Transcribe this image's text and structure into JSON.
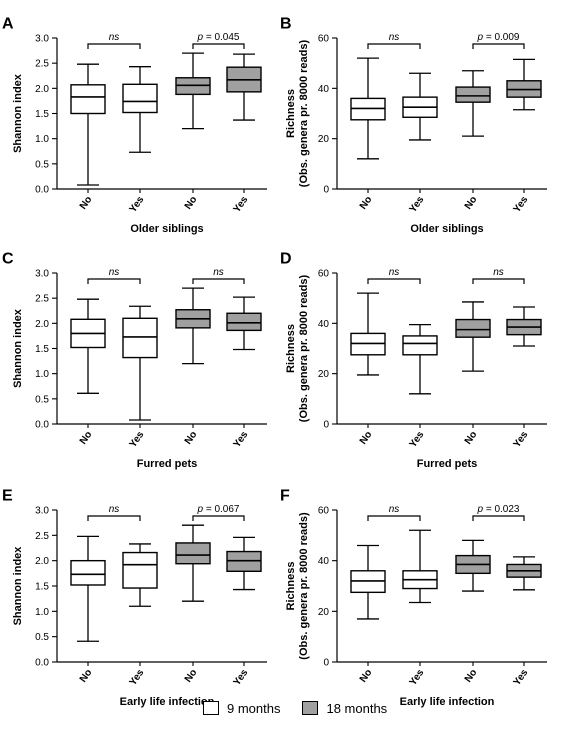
{
  "legend": {
    "items": [
      {
        "label": "9 months",
        "color": "#ffffff"
      },
      {
        "label": "18 months",
        "color": "#a0a0a0"
      }
    ]
  },
  "chart_data": [
    {
      "type": "box",
      "panel": "A",
      "xlabel": "Older siblings",
      "ylabel": "Shannon index",
      "ylim": [
        0,
        3.0
      ],
      "yticks": [
        "0.0",
        "0.5",
        "1.0",
        "1.5",
        "2.0",
        "2.5",
        "3.0"
      ],
      "categories": [
        "No",
        "Yes",
        "No",
        "Yes"
      ],
      "groups": [
        "9 months",
        "9 months",
        "18 months",
        "18 months"
      ],
      "boxes": [
        {
          "min": 0.08,
          "q1": 1.5,
          "median": 1.83,
          "q3": 2.07,
          "max": 2.48
        },
        {
          "min": 0.73,
          "q1": 1.52,
          "median": 1.74,
          "q3": 2.08,
          "max": 2.43
        },
        {
          "min": 1.2,
          "q1": 1.88,
          "median": 2.06,
          "q3": 2.21,
          "max": 2.7
        },
        {
          "min": 1.37,
          "q1": 1.93,
          "median": 2.17,
          "q3": 2.42,
          "max": 2.68
        }
      ],
      "annotations": [
        {
          "text": "ns",
          "between": [
            0,
            1
          ]
        },
        {
          "text": "p = 0.045",
          "between": [
            2,
            3
          ]
        }
      ]
    },
    {
      "type": "box",
      "panel": "B",
      "xlabel": "Older siblings",
      "ylabel": "Richness",
      "ylabel2": "(Obs. genera pr. 8000 reads)",
      "ylim": [
        0,
        60
      ],
      "yticks": [
        "0",
        "20",
        "40",
        "60"
      ],
      "categories": [
        "No",
        "Yes",
        "No",
        "Yes"
      ],
      "groups": [
        "9 months",
        "9 months",
        "18 months",
        "18 months"
      ],
      "boxes": [
        {
          "min": 12,
          "q1": 27.5,
          "median": 32,
          "q3": 36,
          "max": 52
        },
        {
          "min": 19.5,
          "q1": 28.5,
          "median": 32.5,
          "q3": 36.5,
          "max": 46
        },
        {
          "min": 21,
          "q1": 34.5,
          "median": 37,
          "q3": 40.5,
          "max": 47
        },
        {
          "min": 31.5,
          "q1": 36.5,
          "median": 39.5,
          "q3": 43,
          "max": 51.5
        }
      ],
      "annotations": [
        {
          "text": "ns",
          "between": [
            0,
            1
          ]
        },
        {
          "text": "p = 0.009",
          "between": [
            2,
            3
          ]
        }
      ]
    },
    {
      "type": "box",
      "panel": "C",
      "xlabel": "Furred pets",
      "ylabel": "Shannon index",
      "ylim": [
        0,
        3.0
      ],
      "yticks": [
        "0.0",
        "0.5",
        "1.0",
        "1.5",
        "2.0",
        "2.5",
        "3.0"
      ],
      "categories": [
        "No",
        "Yes",
        "No",
        "Yes"
      ],
      "groups": [
        "9 months",
        "9 months",
        "18 months",
        "18 months"
      ],
      "boxes": [
        {
          "min": 0.61,
          "q1": 1.52,
          "median": 1.8,
          "q3": 2.08,
          "max": 2.48
        },
        {
          "min": 0.08,
          "q1": 1.32,
          "median": 1.73,
          "q3": 2.1,
          "max": 2.34
        },
        {
          "min": 1.2,
          "q1": 1.91,
          "median": 2.09,
          "q3": 2.27,
          "max": 2.7
        },
        {
          "min": 1.48,
          "q1": 1.86,
          "median": 2.01,
          "q3": 2.2,
          "max": 2.52
        }
      ],
      "annotations": [
        {
          "text": "ns",
          "between": [
            0,
            1
          ]
        },
        {
          "text": "ns",
          "between": [
            2,
            3
          ]
        }
      ]
    },
    {
      "type": "box",
      "panel": "D",
      "xlabel": "Furred pets",
      "ylabel": "Richness",
      "ylabel2": "(Obs. genera pr. 8000 reads)",
      "ylim": [
        0,
        60
      ],
      "yticks": [
        "0",
        "20",
        "40",
        "60"
      ],
      "categories": [
        "No",
        "Yes",
        "No",
        "Yes"
      ],
      "groups": [
        "9 months",
        "9 months",
        "18 months",
        "18 months"
      ],
      "boxes": [
        {
          "min": 19.5,
          "q1": 27.5,
          "median": 32,
          "q3": 36,
          "max": 52
        },
        {
          "min": 12,
          "q1": 27.5,
          "median": 32,
          "q3": 35,
          "max": 39.5
        },
        {
          "min": 21,
          "q1": 34.5,
          "median": 37.5,
          "q3": 41.5,
          "max": 48.5
        },
        {
          "min": 31,
          "q1": 35.5,
          "median": 38.5,
          "q3": 41.5,
          "max": 46.5
        }
      ],
      "annotations": [
        {
          "text": "ns",
          "between": [
            0,
            1
          ]
        },
        {
          "text": "ns",
          "between": [
            2,
            3
          ]
        }
      ]
    },
    {
      "type": "box",
      "panel": "E",
      "xlabel": "Early life infection",
      "ylabel": "Shannon index",
      "ylim": [
        0,
        3.0
      ],
      "yticks": [
        "0.0",
        "0.5",
        "1.0",
        "1.5",
        "2.0",
        "2.5",
        "3.0"
      ],
      "categories": [
        "No",
        "Yes",
        "No",
        "Yes"
      ],
      "groups": [
        "9 months",
        "9 months",
        "18 months",
        "18 months"
      ],
      "boxes": [
        {
          "min": 0.41,
          "q1": 1.52,
          "median": 1.73,
          "q3": 2.0,
          "max": 2.48
        },
        {
          "min": 1.1,
          "q1": 1.46,
          "median": 1.92,
          "q3": 2.16,
          "max": 2.33
        },
        {
          "min": 1.2,
          "q1": 1.94,
          "median": 2.11,
          "q3": 2.35,
          "max": 2.7
        },
        {
          "min": 1.43,
          "q1": 1.79,
          "median": 2.0,
          "q3": 2.18,
          "max": 2.46
        }
      ],
      "annotations": [
        {
          "text": "ns",
          "between": [
            0,
            1
          ]
        },
        {
          "text": "p = 0.067",
          "between": [
            2,
            3
          ]
        }
      ]
    },
    {
      "type": "box",
      "panel": "F",
      "xlabel": "Early life infection",
      "ylabel": "Richness",
      "ylabel2": "(Obs. genera pr. 8000 reads)",
      "ylim": [
        0,
        60
      ],
      "yticks": [
        "0",
        "20",
        "40",
        "60"
      ],
      "categories": [
        "No",
        "Yes",
        "No",
        "Yes"
      ],
      "groups": [
        "9 months",
        "9 months",
        "18 months",
        "18 months"
      ],
      "boxes": [
        {
          "min": 17,
          "q1": 27.5,
          "median": 32,
          "q3": 36,
          "max": 46
        },
        {
          "min": 23.5,
          "q1": 29,
          "median": 32.5,
          "q3": 36,
          "max": 52
        },
        {
          "min": 28,
          "q1": 35,
          "median": 38.5,
          "q3": 42,
          "max": 48
        },
        {
          "min": 28.5,
          "q1": 33.5,
          "median": 36,
          "q3": 38.5,
          "max": 41.5
        }
      ],
      "annotations": [
        {
          "text": "ns",
          "between": [
            0,
            1
          ]
        },
        {
          "text": "p = 0.023",
          "between": [
            2,
            3
          ]
        }
      ]
    }
  ]
}
